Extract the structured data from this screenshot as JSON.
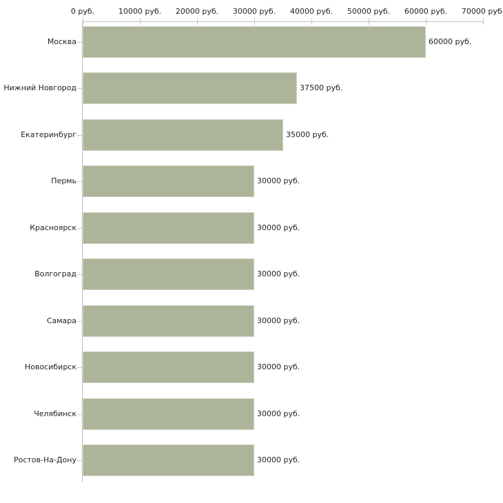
{
  "chart_data": {
    "type": "bar",
    "orientation": "horizontal",
    "title": "",
    "categories": [
      "Москва",
      "Нижний Новгород",
      "Екатеринбург",
      "Пермь",
      "Красноярск",
      "Волгоград",
      "Самара",
      "Новосибирск",
      "Челябинск",
      "Ростов-На-Дону"
    ],
    "values": [
      60000,
      37500,
      35000,
      30000,
      30000,
      30000,
      30000,
      30000,
      30000,
      30000
    ],
    "value_labels": [
      "60000 руб.",
      "37500 руб.",
      "35000 руб.",
      "30000 руб.",
      "30000 руб.",
      "30000 руб.",
      "30000 руб.",
      "30000 руб.",
      "30000 руб.",
      "30000 руб."
    ],
    "unit": "руб.",
    "xlim": [
      0,
      70000
    ],
    "x_ticks": [
      0,
      10000,
      20000,
      30000,
      40000,
      50000,
      60000,
      70000
    ],
    "x_tick_labels": [
      "0 руб.",
      "10000 руб.",
      "20000 руб.",
      "30000 руб.",
      "40000 руб.",
      "50000 руб.",
      "60000 руб.",
      "70000 руб."
    ],
    "grid": false,
    "legend": "none",
    "axis_position": "top",
    "colors": {
      "bar": "#acb499",
      "bar_edge": "#d2d5c6",
      "axis": "#bfbfbf",
      "tick": "#caca9e",
      "text": "#1f1f1f",
      "background": "#ffffff"
    }
  }
}
